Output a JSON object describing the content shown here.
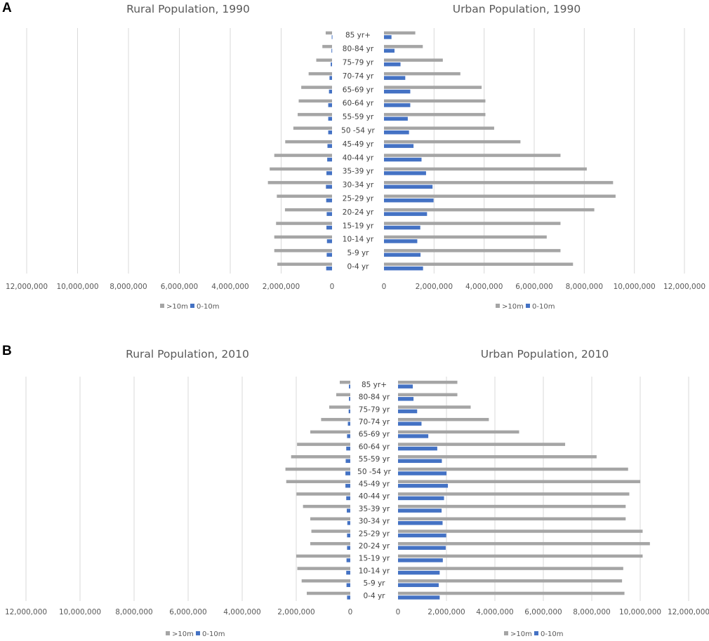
{
  "panels": [
    {
      "letter": "A"
    },
    {
      "letter": "B"
    }
  ],
  "chart_data": [
    {
      "type": "bar",
      "panel": "A",
      "title": "Rural Population, 1990",
      "orientation": "horizontal",
      "direction": "left",
      "categories": [
        "85 yr+",
        "80-84 yr",
        "75-79 yr",
        "70-74 yr",
        "65-69 yr",
        "60-64 yr",
        "55-59 yr",
        "50 -54 yr",
        "45-49 yr",
        "40-44 yr",
        "35-39 yr",
        "30-34 yr",
        "25-29 yr",
        "20-24 yr",
        "15-19 yr",
        "10-14 yr",
        "5-9 yr",
        "0-4 yr"
      ],
      "series": [
        {
          "name": ">10m",
          "color": "#a5a5a5",
          "values": [
            250000,
            380000,
            620000,
            920000,
            1210000,
            1310000,
            1350000,
            1520000,
            1840000,
            2270000,
            2450000,
            2520000,
            2170000,
            1850000,
            2200000,
            2270000,
            2270000,
            2150000
          ]
        },
        {
          "name": "0-10m",
          "color": "#4472c4",
          "values": [
            12000,
            22000,
            52000,
            100000,
            120000,
            150000,
            150000,
            150000,
            180000,
            190000,
            220000,
            240000,
            230000,
            210000,
            220000,
            200000,
            210000,
            230000
          ]
        }
      ],
      "xlim": [
        0,
        12000000
      ],
      "ticks": [
        "12,000,000",
        "10,000,000",
        "8,000,000",
        "6,000,000",
        "4,000,000",
        "2,000,000",
        "0"
      ],
      "legend": [
        ">10m",
        "0-10m"
      ]
    },
    {
      "type": "bar",
      "panel": "A",
      "title": "Urban Population, 1990",
      "orientation": "horizontal",
      "direction": "right",
      "categories": [
        "85 yr+",
        "80-84 yr",
        "75-79 yr",
        "70-74 yr",
        "65-69 yr",
        "60-64 yr",
        "55-59 yr",
        "50 -54 yr",
        "45-49 yr",
        "40-44 yr",
        "35-39 yr",
        "30-34 yr",
        "25-29 yr",
        "20-24 yr",
        "15-19 yr",
        "10-14 yr",
        "5-9 yr",
        "0-4 yr"
      ],
      "series": [
        {
          "name": ">10m",
          "color": "#a5a5a5",
          "values": [
            1250000,
            1550000,
            2350000,
            3050000,
            3900000,
            4050000,
            4050000,
            4400000,
            5450000,
            7050000,
            8100000,
            9150000,
            9250000,
            8400000,
            7050000,
            6500000,
            7050000,
            7550000
          ]
        },
        {
          "name": "0-10m",
          "color": "#4472c4",
          "values": [
            300000,
            420000,
            660000,
            850000,
            1050000,
            1050000,
            950000,
            1000000,
            1180000,
            1500000,
            1680000,
            1940000,
            1980000,
            1720000,
            1450000,
            1330000,
            1460000,
            1560000
          ]
        }
      ],
      "xlim": [
        0,
        12000000
      ],
      "ticks": [
        "0",
        "2,000,000",
        "4,000,000",
        "6,000,000",
        "8,000,000",
        "10,000,000",
        "12,000,000"
      ],
      "legend": [
        ">10m",
        "0-10m"
      ]
    },
    {
      "type": "bar",
      "panel": "B",
      "title": "Rural Population, 2010",
      "orientation": "horizontal",
      "direction": "left",
      "categories": [
        "85 yr+",
        "80-84 yr",
        "75-79 yr",
        "70-74 yr",
        "65-69 yr",
        "60-64 yr",
        "55-59 yr",
        "50 -54 yr",
        "45-49 yr",
        "40-44 yr",
        "35-39 yr",
        "30-34 yr",
        "25-29 yr",
        "20-24 yr",
        "15-19 yr",
        "10-14 yr",
        "5-9 yr",
        "0-4 yr"
      ],
      "series": [
        {
          "name": ">10m",
          "color": "#a5a5a5",
          "values": [
            390000,
            520000,
            780000,
            1080000,
            1480000,
            1970000,
            2190000,
            2400000,
            2370000,
            1990000,
            1750000,
            1480000,
            1440000,
            1480000,
            2000000,
            1960000,
            1800000,
            1610000
          ]
        },
        {
          "name": "0-10m",
          "color": "#4472c4",
          "values": [
            50000,
            50000,
            60000,
            90000,
            120000,
            150000,
            170000,
            180000,
            180000,
            150000,
            130000,
            110000,
            120000,
            120000,
            140000,
            150000,
            140000,
            120000
          ]
        }
      ],
      "xlim": [
        0,
        12000000
      ],
      "ticks": [
        "12,000,000",
        "10,000,000",
        "8,000,000",
        "6,000,000",
        "4,000,000",
        "2,000,000",
        "0"
      ],
      "legend": [
        ">10m",
        "0-10m"
      ]
    },
    {
      "type": "bar",
      "panel": "B",
      "title": "Urban Population, 2010",
      "orientation": "horizontal",
      "direction": "right",
      "categories": [
        "85 yr+",
        "80-84 yr",
        "75-79 yr",
        "70-74 yr",
        "65-69 yr",
        "60-64 yr",
        "55-59 yr",
        "50 -54 yr",
        "45-49 yr",
        "40-44 yr",
        "35-39 yr",
        "30-34 yr",
        "25-29 yr",
        "20-24 yr",
        "15-19 yr",
        "10-14 yr",
        "5-9 yr",
        "0-4 yr"
      ],
      "series": [
        {
          "name": ">10m",
          "color": "#a5a5a5",
          "values": [
            2450000,
            2450000,
            3000000,
            3750000,
            5000000,
            6900000,
            8200000,
            9500000,
            10000000,
            9550000,
            9400000,
            9400000,
            10100000,
            10400000,
            10100000,
            9300000,
            9250000,
            9350000
          ]
        },
        {
          "name": "0-10m",
          "color": "#4472c4",
          "values": [
            610000,
            640000,
            790000,
            970000,
            1250000,
            1620000,
            1810000,
            2000000,
            2060000,
            1900000,
            1800000,
            1840000,
            1990000,
            1970000,
            1850000,
            1720000,
            1680000,
            1720000
          ]
        }
      ],
      "xlim": [
        0,
        12000000
      ],
      "ticks": [
        "0",
        "2,000,000",
        "4,000,000",
        "6,000,000",
        "8,000,000",
        "10,000,000",
        "12,000,000"
      ],
      "legend": [
        ">10m",
        "0-10m"
      ]
    }
  ]
}
